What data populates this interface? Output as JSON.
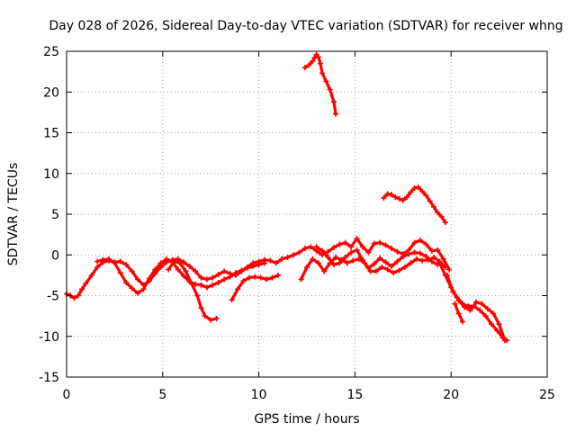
{
  "colors": {
    "series": "#ff0000",
    "axis": "#000000",
    "grid": "#a0a0a0",
    "background": "#ffffff"
  },
  "chart_data": {
    "type": "scatter",
    "title": "Day 028 of 2026, Sidereal Day-to-day VTEC variation (SDTVAR) for receiver whng",
    "xlabel": "GPS time / hours",
    "ylabel": "SDTVAR / TECUs",
    "xlim": [
      0,
      25
    ],
    "ylim": [
      -15,
      25
    ],
    "xticks": [
      0,
      5,
      10,
      15,
      20,
      25
    ],
    "yticks": [
      -15,
      -10,
      -5,
      0,
      5,
      10,
      15,
      20,
      25
    ],
    "grid": true,
    "legend": "none",
    "series": [
      {
        "name": "track-1",
        "x": [
          0.0,
          0.2,
          0.4,
          0.6,
          0.8,
          1.0,
          1.3,
          1.6,
          1.9,
          2.2,
          2.5,
          2.8,
          3.1,
          3.4,
          3.7,
          4.0,
          4.3,
          4.6,
          4.9,
          5.2,
          5.5,
          5.8,
          6.1,
          6.4,
          6.7,
          7.0,
          7.3,
          7.6,
          7.9,
          8.2,
          8.5,
          8.8,
          9.1,
          9.4,
          9.7,
          10.0,
          10.3,
          10.6,
          10.9,
          11.2,
          11.5,
          11.8,
          12.1,
          12.4,
          12.7,
          13.0,
          13.3,
          13.6,
          13.9,
          14.2,
          14.5,
          14.8,
          15.1,
          15.4,
          15.7,
          16.0,
          16.3,
          16.6,
          16.9,
          17.2,
          17.5,
          17.8,
          18.1,
          18.4,
          18.7,
          19.0,
          19.3,
          19.6,
          19.9
        ],
        "y": [
          -4.8,
          -5.0,
          -5.3,
          -5.0,
          -4.2,
          -3.5,
          -2.5,
          -1.5,
          -0.9,
          -0.7,
          -0.9,
          -0.8,
          -1.2,
          -2.0,
          -3.0,
          -3.7,
          -3.2,
          -2.3,
          -1.5,
          -0.9,
          -0.6,
          -0.5,
          -0.9,
          -1.4,
          -2.0,
          -2.8,
          -3.0,
          -2.8,
          -2.4,
          -2.0,
          -2.3,
          -2.5,
          -2.0,
          -1.5,
          -1.0,
          -0.8,
          -0.6,
          -0.7,
          -1.0,
          -0.5,
          -0.3,
          0.0,
          0.3,
          0.8,
          1.0,
          0.5,
          0.0,
          0.4,
          0.9,
          1.3,
          1.5,
          1.0,
          2.0,
          1.0,
          0.3,
          1.4,
          1.5,
          1.2,
          0.8,
          0.4,
          0.1,
          0.6,
          1.5,
          1.8,
          1.3,
          0.5,
          0.6,
          -0.5,
          -1.8
        ]
      },
      {
        "name": "track-2",
        "x": [
          1.6,
          1.9,
          2.2,
          2.5,
          2.8,
          3.1,
          3.4,
          3.7,
          4.0,
          4.3,
          4.6,
          4.9,
          5.2,
          5.5,
          5.8,
          6.1,
          6.4,
          6.7,
          7.0,
          7.3,
          7.6,
          7.9,
          8.2,
          8.5,
          8.8,
          9.1,
          9.4,
          9.7,
          10.0,
          10.3
        ],
        "y": [
          -0.8,
          -0.6,
          -0.5,
          -1.0,
          -2.2,
          -3.4,
          -4.1,
          -4.7,
          -4.2,
          -2.9,
          -1.8,
          -1.0,
          -0.5,
          -0.9,
          -1.8,
          -2.6,
          -3.3,
          -3.6,
          -3.7,
          -4.0,
          -3.7,
          -3.4,
          -3.0,
          -2.7,
          -2.2,
          -1.9,
          -1.6,
          -1.4,
          -1.2,
          -1.0
        ]
      },
      {
        "name": "track-3",
        "x": [
          5.3,
          5.6,
          5.9,
          6.2,
          6.5,
          6.8,
          7.0,
          7.2,
          7.5,
          7.8
        ],
        "y": [
          -1.8,
          -0.8,
          -1.0,
          -2.0,
          -3.5,
          -5.0,
          -6.5,
          -7.5,
          -8.0,
          -7.8
        ]
      },
      {
        "name": "track-4",
        "x": [
          8.6,
          8.9,
          9.2,
          9.5,
          9.8,
          10.1,
          10.4,
          10.7,
          11.0
        ],
        "y": [
          -5.5,
          -4.2,
          -3.2,
          -2.8,
          -2.7,
          -2.8,
          -3.0,
          -2.8,
          -2.5
        ]
      },
      {
        "name": "track-5",
        "x": [
          12.2,
          12.5,
          12.8,
          13.1,
          13.4,
          13.7,
          14.0,
          14.3,
          14.6,
          14.9,
          15.2,
          15.5,
          15.8,
          16.1,
          16.4,
          16.7,
          17.0,
          17.3,
          17.6,
          17.9,
          18.2,
          18.5,
          18.8,
          19.1,
          19.4,
          19.7
        ],
        "y": [
          -3.0,
          -1.5,
          -0.5,
          -1.0,
          -2.0,
          -1.0,
          -0.3,
          -0.6,
          -1.0,
          -0.7,
          -0.5,
          -1.0,
          -2.0,
          -2.0,
          -1.5,
          -1.8,
          -2.2,
          -1.9,
          -1.5,
          -1.0,
          -0.5,
          -0.7,
          -0.6,
          -0.3,
          -0.8,
          -1.5
        ]
      },
      {
        "name": "track-6",
        "x": [
          13.0,
          13.3,
          13.6,
          13.9,
          14.2,
          14.5,
          14.8,
          15.1,
          15.4,
          15.7,
          16.0,
          16.3,
          16.6,
          16.9,
          17.2,
          17.5,
          17.8,
          18.1,
          18.4,
          18.7,
          19.0,
          19.3
        ],
        "y": [
          1.0,
          0.5,
          -0.3,
          -1.2,
          -1.0,
          -0.3,
          0.3,
          0.6,
          -0.6,
          -1.6,
          -1.1,
          -0.4,
          -0.9,
          -1.4,
          -0.8,
          -0.2,
          0.1,
          0.3,
          0.2,
          -0.2,
          -0.8,
          -1.2
        ]
      },
      {
        "name": "track-7",
        "x": [
          19.4,
          19.7,
          20.0,
          20.3,
          20.6,
          20.9,
          21.2,
          21.5,
          21.8,
          22.1,
          22.4,
          22.7,
          22.9
        ],
        "y": [
          -1.0,
          -2.5,
          -4.0,
          -5.2,
          -6.0,
          -6.3,
          -6.3,
          -6.8,
          -7.5,
          -8.5,
          -9.3,
          -10.2,
          -10.5
        ]
      },
      {
        "name": "track-8",
        "x": [
          19.8,
          20.1,
          20.4,
          20.7,
          21.0,
          21.3,
          21.6,
          21.9,
          22.2,
          22.5,
          22.8
        ],
        "y": [
          -2.5,
          -4.5,
          -5.6,
          -6.4,
          -6.8,
          -5.8,
          -6.0,
          -6.6,
          -7.2,
          -8.5,
          -10.5
        ]
      },
      {
        "name": "track-9",
        "x": [
          20.2,
          20.4,
          20.6
        ],
        "y": [
          -6.0,
          -7.2,
          -8.2
        ]
      },
      {
        "name": "track-10",
        "x": [
          12.4,
          12.6,
          12.8,
          12.9,
          13.0,
          13.1,
          13.2,
          13.3,
          13.5,
          13.7,
          13.9,
          14.0
        ],
        "y": [
          23.0,
          23.3,
          23.8,
          24.2,
          24.6,
          24.3,
          23.5,
          22.3,
          21.3,
          20.3,
          18.8,
          17.3
        ]
      },
      {
        "name": "track-11",
        "x": [
          16.5,
          16.7,
          16.9,
          17.1,
          17.3,
          17.5,
          17.7,
          17.9,
          18.1,
          18.3,
          18.5,
          18.7,
          18.9,
          19.1,
          19.3,
          19.5,
          19.7
        ],
        "y": [
          7.0,
          7.5,
          7.4,
          7.1,
          6.9,
          6.7,
          7.1,
          7.7,
          8.2,
          8.3,
          7.8,
          7.3,
          6.6,
          5.9,
          5.2,
          4.7,
          4.0
        ]
      }
    ]
  }
}
